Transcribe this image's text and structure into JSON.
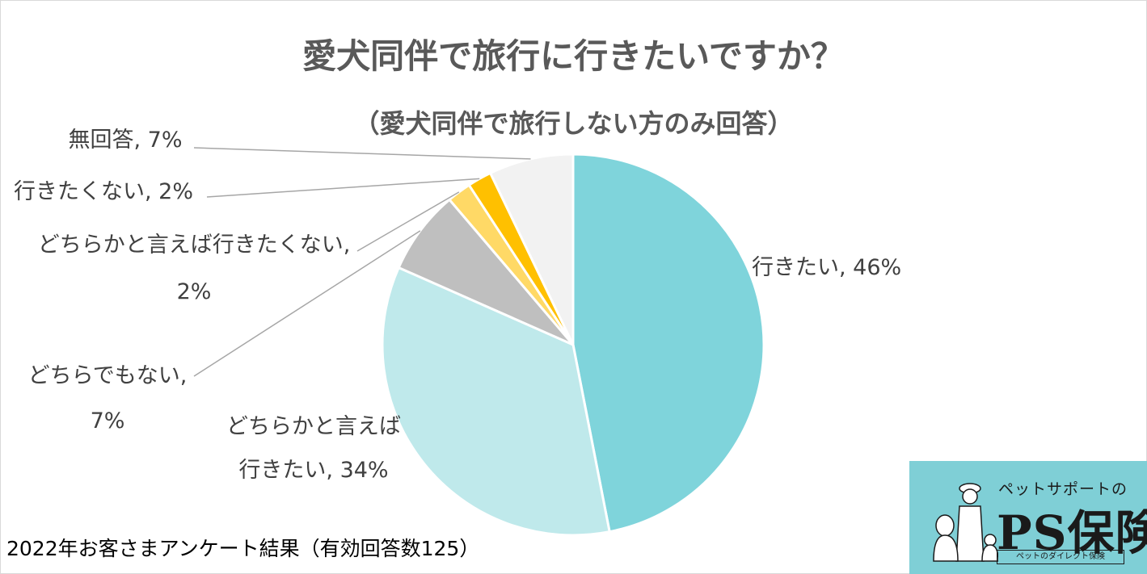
{
  "title": "愛犬同伴で旅行に行きたいですか？",
  "subtitle": "（愛犬同伴で旅行しない方のみ回答）",
  "footnote": "2022年お客さまアンケート結果（有効回答数125）",
  "logo": {
    "tagline": "ペットサポートの",
    "name": "PS保険",
    "sub": "ペットのダイレクト保険"
  },
  "chart_data": {
    "type": "pie",
    "title": "愛犬同伴で旅行に行きたいですか？",
    "slices": [
      {
        "label": "行きたい",
        "value": 46,
        "color": "#7fd4db",
        "text_lines": [
          "行きたい, 46%"
        ]
      },
      {
        "label": "どちらかと言えば行きたい",
        "value": 34,
        "color": "#bfe9eb",
        "text_lines": [
          "どちらかと言えば",
          "行きたい, 34%"
        ]
      },
      {
        "label": "どちらでもない",
        "value": 7,
        "color": "#bfbfbf",
        "text_lines": [
          "どちらでもない,",
          "7%"
        ]
      },
      {
        "label": "どちらかと言えば行きたくない",
        "value": 2,
        "color": "#ffd966",
        "text_lines": [
          "どちらかと言えば行きたくない,",
          "2%"
        ]
      },
      {
        "label": "行きたくない",
        "value": 2,
        "color": "#ffc000",
        "text_lines": [
          "行きたくない, 2%"
        ]
      },
      {
        "label": "無回答",
        "value": 7,
        "color": "#f2f2f2",
        "text_lines": [
          "無回答, 7%"
        ]
      }
    ]
  }
}
